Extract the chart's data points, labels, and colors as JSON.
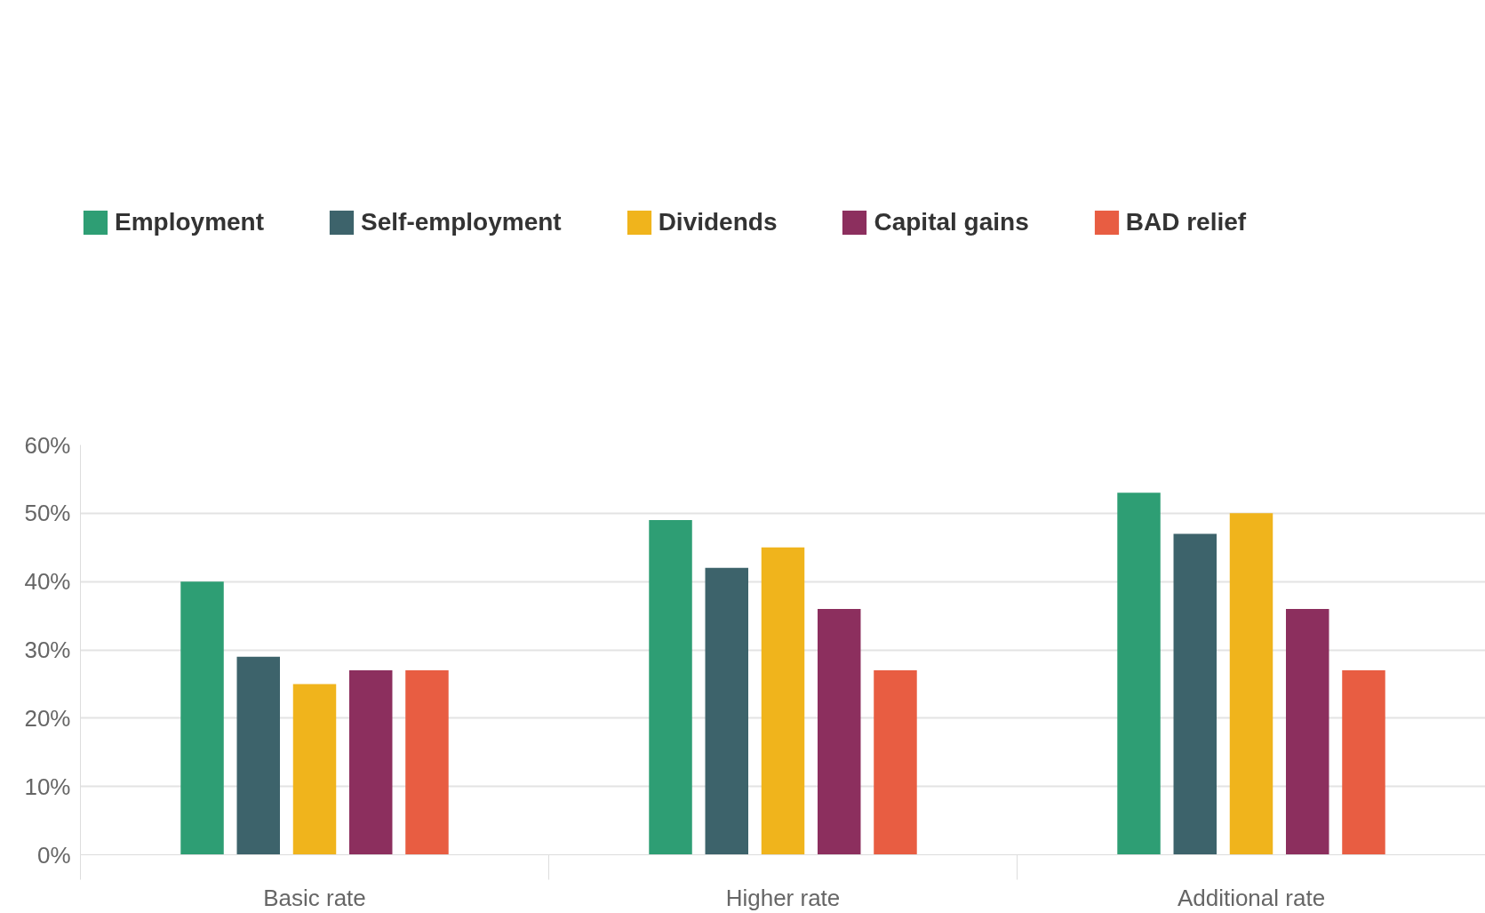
{
  "chart_data": {
    "type": "bar",
    "categories": [
      "Basic rate",
      "Higher rate",
      "Additional rate"
    ],
    "series": [
      {
        "name": "Employment",
        "color": "#2e9e74",
        "values": [
          40,
          49,
          53
        ]
      },
      {
        "name": "Self-employment",
        "color": "#3d636b",
        "values": [
          29,
          42,
          47
        ]
      },
      {
        "name": "Dividends",
        "color": "#f0b41c",
        "values": [
          25,
          45,
          50
        ]
      },
      {
        "name": "Capital gains",
        "color": "#8c2f5e",
        "values": [
          27,
          36,
          36
        ]
      },
      {
        "name": "BAD relief",
        "color": "#e85d42",
        "values": [
          27,
          27,
          27
        ]
      }
    ],
    "ylim": [
      0,
      60
    ],
    "yticks": [
      {
        "value": 0,
        "label": "0%"
      },
      {
        "value": 10,
        "label": "10%"
      },
      {
        "value": 20,
        "label": "20%"
      },
      {
        "value": 30,
        "label": "30%"
      },
      {
        "value": 40,
        "label": "40%"
      },
      {
        "value": 50,
        "label": "50%"
      },
      {
        "value": 60,
        "label": "60%"
      }
    ],
    "grid": "y",
    "legend": "top left"
  }
}
